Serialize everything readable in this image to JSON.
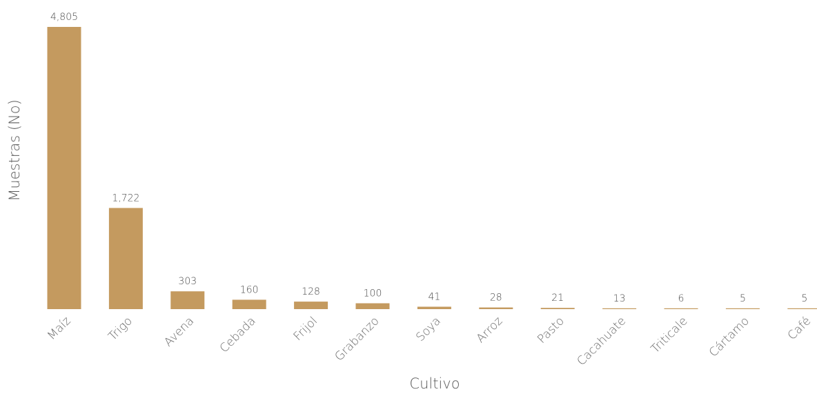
{
  "chart_data": {
    "type": "bar",
    "xlabel": "Cultivo",
    "ylabel": "Muestras (No)",
    "ylim": [
      0,
      4805
    ],
    "grid": false,
    "bar_color": "#C49A5F",
    "categories": [
      "Maíz",
      "Trigo",
      "Avena",
      "Cebada",
      "Frijol",
      "Grabanzo",
      "Soya",
      "Arroz",
      "Pasto",
      "Cacahuate",
      "Triticale",
      "Cártamo",
      "Café"
    ],
    "values": [
      4805,
      1722,
      303,
      160,
      128,
      100,
      41,
      28,
      21,
      13,
      6,
      5,
      5
    ],
    "value_labels": [
      "4,805",
      "1,722",
      "303",
      "160",
      "128",
      "100",
      "41",
      "28",
      "21",
      "13",
      "6",
      "5",
      "5"
    ]
  }
}
